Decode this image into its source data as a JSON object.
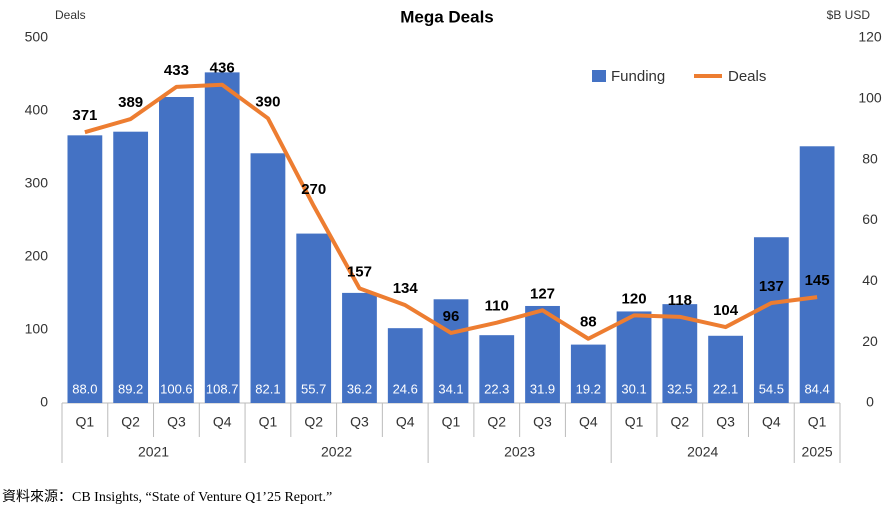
{
  "chart_data": {
    "type": "combo",
    "title": "Mega Deals",
    "y_label": "Deals",
    "y2_label": "$B USD",
    "categories": [
      "Q1",
      "Q2",
      "Q3",
      "Q4",
      "Q1",
      "Q2",
      "Q3",
      "Q4",
      "Q1",
      "Q2",
      "Q3",
      "Q4",
      "Q1",
      "Q2",
      "Q3",
      "Q4",
      "Q1"
    ],
    "groups": [
      {
        "label": "2021",
        "span": 4
      },
      {
        "label": "2022",
        "span": 4
      },
      {
        "label": "2023",
        "span": 4
      },
      {
        "label": "2024",
        "span": 4
      },
      {
        "label": "2025",
        "span": 1
      }
    ],
    "series": [
      {
        "name": "Funding",
        "type": "bar",
        "axis": "y2",
        "color": "#4472c4",
        "values": [
          88.0,
          89.2,
          100.6,
          108.7,
          82.1,
          55.7,
          36.2,
          24.6,
          34.1,
          22.3,
          31.9,
          19.2,
          30.1,
          32.5,
          22.1,
          54.5,
          84.4
        ],
        "value_labels": [
          "88.0",
          "89.2",
          "100.6",
          "108.7",
          "82.1",
          "55.7",
          "36.2",
          "24.6",
          "34.1",
          "22.3",
          "31.9",
          "19.2",
          "30.1",
          "32.5",
          "22.1",
          "54.5",
          "84.4"
        ]
      },
      {
        "name": "Deals",
        "type": "line",
        "axis": "y",
        "color": "#ed7d31",
        "values": [
          371,
          389,
          433,
          436,
          390,
          270,
          157,
          134,
          96,
          110,
          127,
          88,
          120,
          118,
          104,
          137,
          145
        ]
      }
    ],
    "ylim": [
      0,
      500
    ],
    "yticks": [
      0,
      100,
      200,
      300,
      400,
      500
    ],
    "y2lim": [
      0,
      120
    ],
    "y2ticks": [
      0,
      20,
      40,
      60,
      80,
      100,
      120
    ],
    "legend": "upper right",
    "source": "資料來源：CB Insights, “State of Venture Q1’25 Report.”"
  }
}
